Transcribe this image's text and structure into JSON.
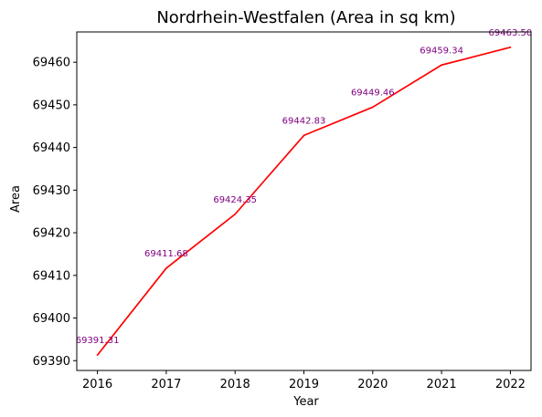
{
  "chart_data": {
    "type": "line",
    "title": "Nordrhein-Westfalen (Area in sq km)",
    "xlabel": "Year",
    "ylabel": "Area",
    "x": [
      2016,
      2017,
      2018,
      2019,
      2020,
      2021,
      2022
    ],
    "series": [
      {
        "values": [
          69391.31,
          69411.68,
          69424.35,
          69442.83,
          69449.46,
          69459.34,
          69463.5
        ],
        "data_labels": [
          "69391.31",
          "69411.68",
          "69424.35",
          "69442.83",
          "69449.46",
          "69459.34",
          "69463.50"
        ],
        "color": "#ff0000"
      }
    ],
    "label_color": "#800080",
    "xlim": [
      2015.7,
      2022.3
    ],
    "ylim": [
      69387.7,
      69467.1
    ],
    "xticks": [
      2016,
      2017,
      2018,
      2019,
      2020,
      2021,
      2022
    ],
    "yticks": [
      69390,
      69400,
      69410,
      69420,
      69430,
      69440,
      69450,
      69460
    ],
    "grid": false,
    "legend": "none"
  }
}
